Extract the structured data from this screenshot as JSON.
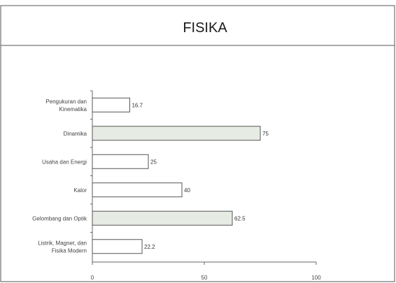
{
  "chart_data": {
    "type": "bar",
    "orientation": "horizontal",
    "title": "FISIKA",
    "categories": [
      [
        "Pengukuran dan",
        "Kinematika"
      ],
      [
        "Dinamika"
      ],
      [
        "Usaha dan Energi"
      ],
      [
        "Kalor"
      ],
      [
        "Gelombang dan Optik"
      ],
      [
        "Listrik, Magnet, dan",
        "Fisika Modern"
      ]
    ],
    "values": [
      16.7,
      75,
      25,
      40,
      62.5,
      22.2
    ],
    "value_labels": [
      "16.7",
      "75",
      "25",
      "40",
      "62.5",
      "22.2"
    ],
    "highlighted": [
      false,
      true,
      false,
      false,
      true,
      false
    ],
    "xlim": [
      0,
      100
    ],
    "xticks": [
      "0",
      "50",
      "100"
    ],
    "xlabel": "",
    "ylabel": "",
    "grid": false,
    "colors": {
      "bar_fill": "#ffffff",
      "bar_highlight_fill": "#e6ece4",
      "bar_stroke": "#555555",
      "axis": "#666666",
      "border": "#555555"
    }
  }
}
